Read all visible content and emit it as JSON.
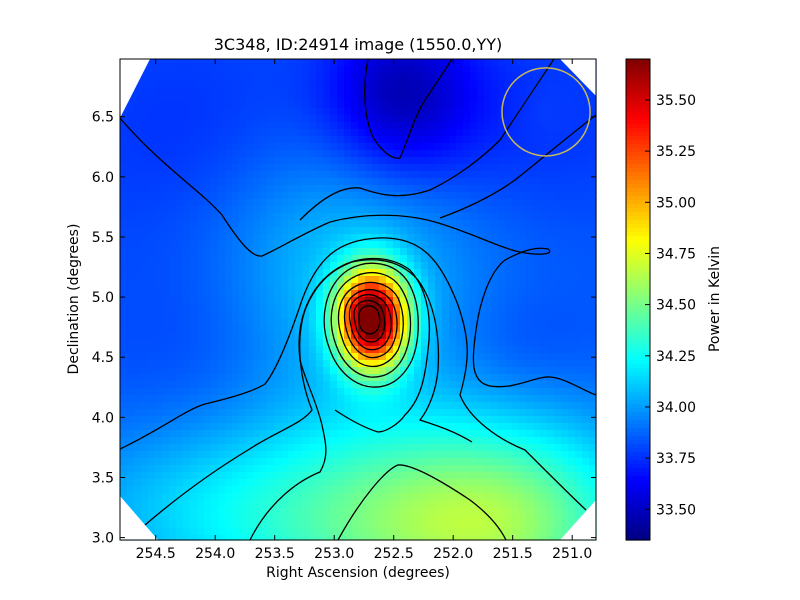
{
  "chart_data": {
    "type": "heatmap",
    "title": "3C348, ID:24914 image (1550.0,YY)",
    "xlabel": "Right Ascension (degrees)",
    "ylabel": "Declination (degrees)",
    "xlim": [
      254.8,
      250.8
    ],
    "ylim": [
      2.98,
      6.98
    ],
    "x_ticks": [
      254.5,
      254.0,
      253.5,
      253.0,
      252.5,
      252.0,
      251.5,
      251.0
    ],
    "x_tick_labels": [
      "254.5",
      "254.0",
      "253.5",
      "253.0",
      "252.5",
      "252.0",
      "251.5",
      "251.0"
    ],
    "y_ticks": [
      3.0,
      3.5,
      4.0,
      4.5,
      5.0,
      5.5,
      6.0,
      6.5
    ],
    "y_tick_labels": [
      "3.0",
      "3.5",
      "4.0",
      "4.5",
      "5.0",
      "5.5",
      "6.0",
      "6.5"
    ],
    "colorbar": {
      "label": "Power in Kelvin",
      "range": [
        33.35,
        35.7
      ],
      "ticks": [
        33.5,
        33.75,
        34.0,
        34.25,
        34.5,
        34.75,
        35.0,
        35.25,
        35.5
      ],
      "tick_labels": [
        "33.50",
        "33.75",
        "34.00",
        "34.25",
        "34.50",
        "34.75",
        "35.00",
        "35.25",
        "35.50"
      ],
      "colormap": "jet"
    },
    "peak": {
      "ra": 252.68,
      "dec": 4.82,
      "value": 35.7
    },
    "beam_circle": {
      "ra": 251.22,
      "dec": 6.54,
      "radius_deg": 0.37,
      "color": "#c8b85a"
    },
    "grid": false,
    "contours": true
  }
}
